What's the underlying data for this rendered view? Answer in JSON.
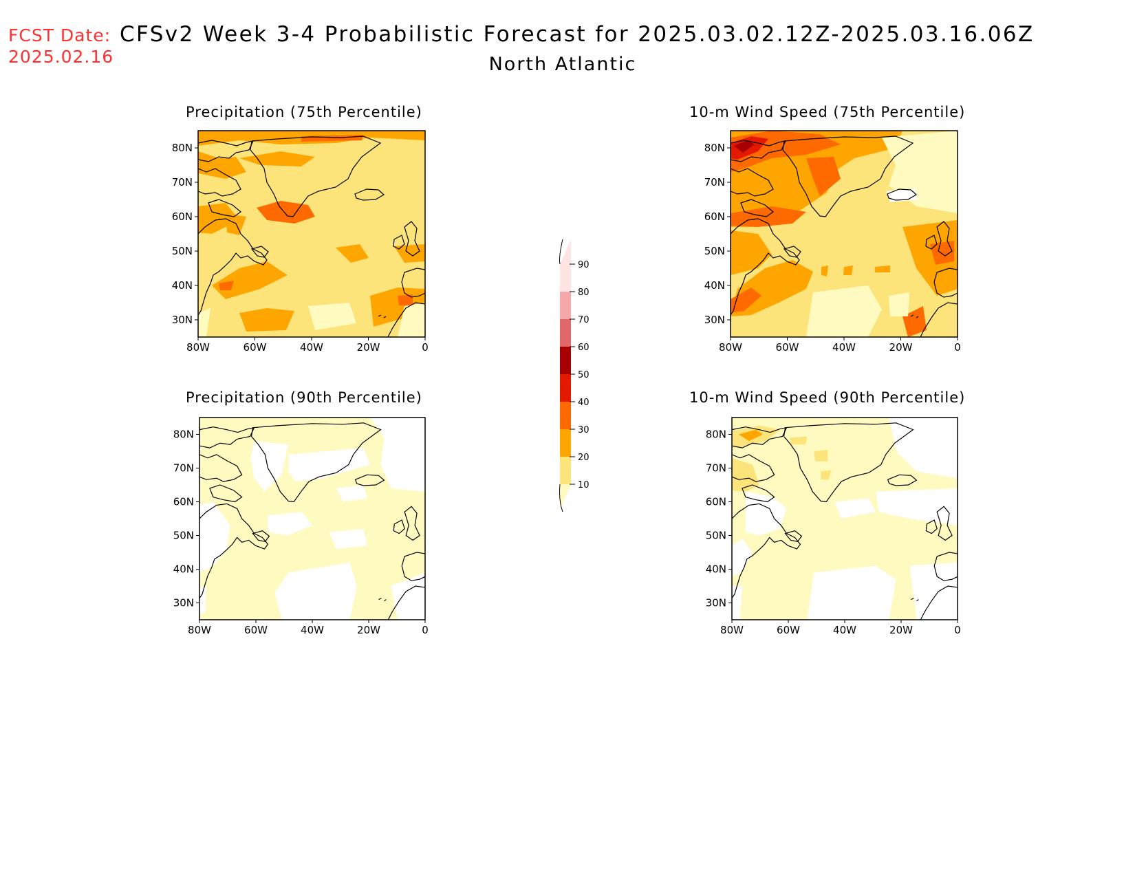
{
  "header": {
    "fcst_label": "FCST Date:",
    "fcst_date": "2025.02.16",
    "title": "CFSv2 Week 3-4 Probabilistic Forecast for 2025.03.02.12Z-2025.03.16.06Z",
    "subtitle": "North Atlantic"
  },
  "panels": [
    {
      "title": "Precipitation (75th Percentile)"
    },
    {
      "title": "10-m Wind Speed (75th Percentile)"
    },
    {
      "title": "Precipitation (90th Percentile)"
    },
    {
      "title": "10-m Wind Speed (90th Percentile)"
    }
  ],
  "axes": {
    "lat_labels": [
      "80N",
      "70N",
      "60N",
      "50N",
      "40N",
      "30N"
    ],
    "lon_labels": [
      "80W",
      "60W",
      "40W",
      "20W",
      "0"
    ]
  },
  "colorbar": {
    "levels": [
      "10",
      "20",
      "30",
      "40",
      "50",
      "60",
      "70",
      "80",
      "90"
    ],
    "colors": [
      "#fffac0",
      "#fde47a",
      "#ffa500",
      "#ff6a00",
      "#e41a00",
      "#a80000",
      "#e06868",
      "#f4a8a8",
      "#ffe4e4"
    ]
  }
}
